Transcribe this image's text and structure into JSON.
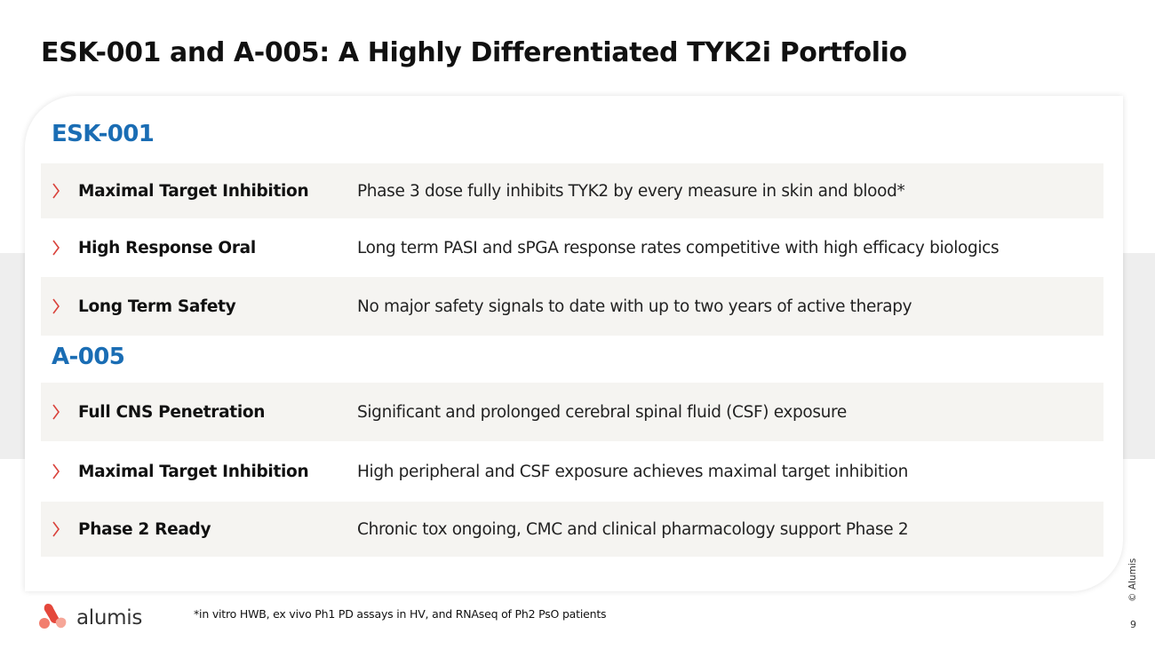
{
  "slide": {
    "title": "ESK-001 and A-005: A Highly Differentiated TYK2i Portfolio",
    "footnote": "*in vitro HWB, ex vivo Ph1 PD assays in HV, and RNAseq of Ph2 PsO patients",
    "copyright": "© Alumis",
    "page_number": "9"
  },
  "logo": {
    "text": "alumis",
    "mark_colors": [
      "#e4473b",
      "#f27e6e",
      "#f6a698"
    ]
  },
  "sections": [
    {
      "heading": "ESK-001",
      "rows": [
        {
          "label": "Maximal Target Inhibition",
          "description": "Phase 3 dose fully inhibits TYK2 by every measure in skin and blood*"
        },
        {
          "label": "High Response Oral",
          "description": "Long term PASI and sPGA response rates competitive with high efficacy biologics"
        },
        {
          "label": "Long Term Safety",
          "description": "No major safety signals to date with up to two years of active therapy"
        }
      ]
    },
    {
      "heading": "A-005",
      "rows": [
        {
          "label": "Full CNS Penetration",
          "description": "Significant and prolonged cerebral spinal fluid (CSF) exposure"
        },
        {
          "label": "Maximal Target Inhibition",
          "description": "High peripheral and CSF exposure achieves maximal target inhibition"
        },
        {
          "label": "Phase 2 Ready",
          "description": "Chronic tox ongoing, CMC and clinical pharmacology support Phase 2"
        }
      ]
    }
  ],
  "colors": {
    "heading_blue": "#1a6db4",
    "chevron_red": "#d9423b",
    "row_shade": "#f5f4f1",
    "band_gray": "#eeeeee"
  },
  "icons": {
    "bullet": "chevron-right-icon",
    "logo_mark": "alumis-logo-mark"
  }
}
